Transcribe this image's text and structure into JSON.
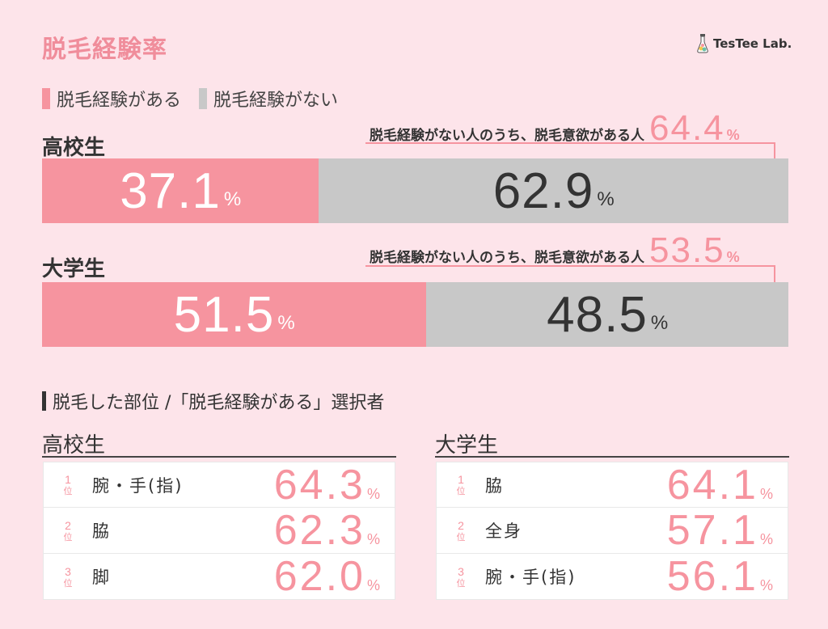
{
  "title": "脱毛経験率",
  "logo": {
    "text": "TesTee Lab."
  },
  "legend": [
    {
      "label": "脱毛経験がある",
      "color": "#f6949f"
    },
    {
      "label": "脱毛経験がない",
      "color": "#c8c8c8"
    }
  ],
  "callout_text": "脱毛経験がない人のうち、脱毛意欲がある人",
  "percent_sign": "%",
  "chart_data": {
    "type": "bar",
    "title": "脱毛経験率",
    "orientation": "horizontal-stacked-100",
    "categories": [
      "高校生",
      "大学生"
    ],
    "series": [
      {
        "name": "脱毛経験がある",
        "values": [
          37.1,
          51.5
        ]
      },
      {
        "name": "脱毛経験がない",
        "values": [
          62.9,
          48.5
        ]
      }
    ],
    "sub_metric": {
      "label": "脱毛経験がない人のうち、脱毛意欲がある人",
      "values": [
        64.4,
        53.5
      ]
    },
    "ylim": [
      0,
      100
    ],
    "grid": false,
    "legend_position": "top-left"
  },
  "groups": [
    {
      "label": "高校生",
      "yes": "37.1",
      "no": "62.9",
      "callout": "64.4"
    },
    {
      "label": "大学生",
      "yes": "51.5",
      "no": "48.5",
      "callout": "53.5"
    }
  ],
  "ranking": {
    "title": "脱毛した部位 /「脱毛経験がある」選択者",
    "rank_suffix": "位",
    "groups": [
      {
        "label": "高校生",
        "rows": [
          {
            "rank": "1",
            "item": "腕・手(指)",
            "value": "64.3"
          },
          {
            "rank": "2",
            "item": "脇",
            "value": "62.3"
          },
          {
            "rank": "3",
            "item": "脚",
            "value": "62.0"
          }
        ]
      },
      {
        "label": "大学生",
        "rows": [
          {
            "rank": "1",
            "item": "脇",
            "value": "64.1"
          },
          {
            "rank": "2",
            "item": "全身",
            "value": "57.1"
          },
          {
            "rank": "3",
            "item": "腕・手(指)",
            "value": "56.1"
          }
        ]
      }
    ]
  }
}
